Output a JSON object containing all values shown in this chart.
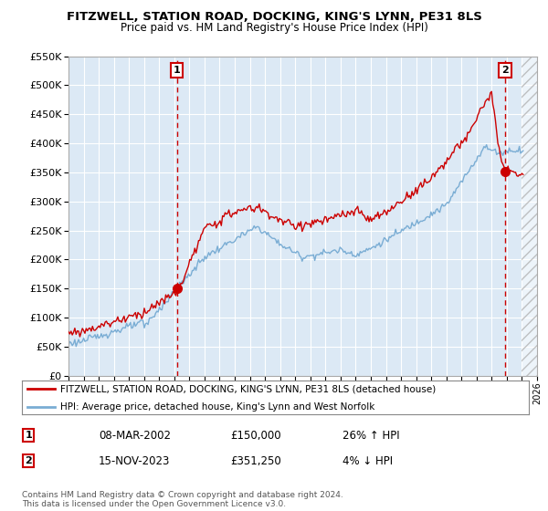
{
  "title": "FITZWELL, STATION ROAD, DOCKING, KING'S LYNN, PE31 8LS",
  "subtitle": "Price paid vs. HM Land Registry's House Price Index (HPI)",
  "legend_line1": "FITZWELL, STATION ROAD, DOCKING, KING'S LYNN, PE31 8LS (detached house)",
  "legend_line2": "HPI: Average price, detached house, King's Lynn and West Norfolk",
  "annotation1_label": "1",
  "annotation1_date": "08-MAR-2002",
  "annotation1_price": "£150,000",
  "annotation1_hpi": "26% ↑ HPI",
  "annotation2_label": "2",
  "annotation2_date": "15-NOV-2023",
  "annotation2_price": "£351,250",
  "annotation2_hpi": "4% ↓ HPI",
  "footer": "Contains HM Land Registry data © Crown copyright and database right 2024.\nThis data is licensed under the Open Government Licence v3.0.",
  "property_color": "#cc0000",
  "hpi_color": "#7aadd4",
  "plot_bg_color": "#dce9f5",
  "background_color": "#ffffff",
  "grid_color": "#ffffff",
  "ylim": [
    0,
    550000
  ],
  "yticks": [
    0,
    50000,
    100000,
    150000,
    200000,
    250000,
    300000,
    350000,
    400000,
    450000,
    500000,
    550000
  ],
  "sale1_x": 2002.18,
  "sale1_y": 150000,
  "sale2_x": 2023.88,
  "sale2_y": 351250,
  "vline1_x": 2002.18,
  "vline2_x": 2023.88,
  "xmin": 1995,
  "xmax": 2026,
  "hatch_start": 2025.0
}
